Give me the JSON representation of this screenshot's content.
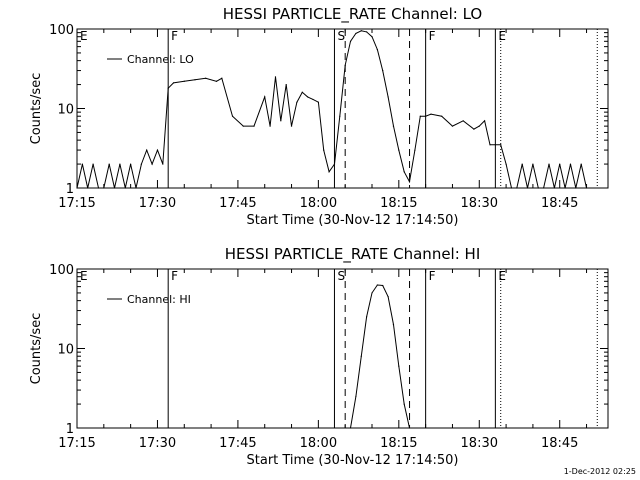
{
  "footer": "1-Dec-2012 02:25",
  "chart_data": [
    {
      "type": "line",
      "title": "HESSI PARTICLE_RATE Channel: LO",
      "xlabel": "Start Time (30-Nov-12 17:14:50)",
      "ylabel": "Counts/sec",
      "y_scale": "log",
      "ylim": [
        1,
        100
      ],
      "y_ticks": [
        1,
        10,
        100
      ],
      "y_tick_labels": [
        "1",
        "10",
        "100"
      ],
      "xlim": [
        "17:15",
        "18:54"
      ],
      "x_ticks": [
        "17:15",
        "17:30",
        "17:45",
        "18:00",
        "18:15",
        "18:30",
        "18:45"
      ],
      "legend": {
        "label": "Channel: LO",
        "placement": "top-left"
      },
      "series": [
        {
          "name": "Channel: LO",
          "x": [
            "17:15",
            "17:16",
            "17:17",
            "17:18",
            "17:19",
            "17:20",
            "17:21",
            "17:22",
            "17:23",
            "17:24",
            "17:25",
            "17:26",
            "17:27",
            "17:28",
            "17:29",
            "17:30",
            "17:31",
            "17:32",
            "17:33",
            "17:35",
            "17:37",
            "17:39",
            "17:41",
            "17:42",
            "17:44",
            "17:46",
            "17:48",
            "17:50",
            "17:51",
            "17:52",
            "17:53",
            "17:54",
            "17:55",
            "17:56",
            "17:57",
            "17:58",
            "17:59",
            "18:00",
            "18:01",
            "18:02",
            "18:03",
            "18:04",
            "18:05",
            "18:06",
            "18:07",
            "18:08",
            "18:09",
            "18:10",
            "18:11",
            "18:12",
            "18:13",
            "18:14",
            "18:15",
            "18:16",
            "18:17",
            "18:18",
            "18:19",
            "18:20",
            "18:21",
            "18:23",
            "18:25",
            "18:27",
            "18:29",
            "18:30",
            "18:31",
            "18:32",
            "18:33",
            "18:34",
            "18:35",
            "18:36",
            "18:37",
            "18:38",
            "18:39",
            "18:40",
            "18:41",
            "18:42",
            "18:43",
            "18:44",
            "18:45",
            "18:46",
            "18:47",
            "18:48",
            "18:49",
            "18:50"
          ],
          "values": [
            1,
            2,
            1,
            2,
            1,
            1,
            2,
            1,
            2,
            1,
            2,
            1,
            2,
            3,
            2,
            3,
            2,
            18,
            21,
            22,
            23,
            24,
            22,
            24,
            8,
            6,
            6,
            14,
            6,
            25,
            7,
            20,
            6,
            12,
            16,
            14,
            13,
            12,
            3,
            1.6,
            2,
            8,
            35,
            70,
            88,
            95,
            92,
            80,
            55,
            30,
            14,
            6,
            3,
            1.6,
            1.2,
            3,
            8,
            8,
            8.5,
            8,
            6,
            7,
            5.5,
            6,
            7,
            3.5,
            3.5,
            3.5,
            2,
            1,
            1,
            2,
            1,
            2,
            1,
            1,
            2,
            1,
            2,
            1,
            2,
            1,
            2,
            1
          ]
        }
      ],
      "markers": [
        {
          "label": "E",
          "time": "17:15",
          "style": "solid"
        },
        {
          "label": "F",
          "time": "17:32",
          "style": "solid"
        },
        {
          "label": "S",
          "time": "18:03",
          "style": "solid"
        },
        {
          "label": "",
          "time": "18:05",
          "style": "dashed"
        },
        {
          "label": "",
          "time": "18:17",
          "style": "dashed"
        },
        {
          "label": "F",
          "time": "18:20",
          "style": "solid"
        },
        {
          "label": "E",
          "time": "18:33",
          "style": "solid"
        },
        {
          "label": "",
          "time": "18:34",
          "style": "dotted"
        },
        {
          "label": "",
          "time": "18:52",
          "style": "dotted"
        }
      ]
    },
    {
      "type": "line",
      "title": "HESSI PARTICLE_RATE Channel: HI",
      "xlabel": "Start Time (30-Nov-12 17:14:50)",
      "ylabel": "Counts/sec",
      "y_scale": "log",
      "ylim": [
        1,
        100
      ],
      "y_ticks": [
        1,
        10,
        100
      ],
      "y_tick_labels": [
        "1",
        "10",
        "100"
      ],
      "xlim": [
        "17:15",
        "18:54"
      ],
      "x_ticks": [
        "17:15",
        "17:30",
        "17:45",
        "18:00",
        "18:15",
        "18:30",
        "18:45"
      ],
      "legend": {
        "label": "Channel: HI",
        "placement": "top-left"
      },
      "series": [
        {
          "name": "Channel: HI",
          "x": [
            "18:06",
            "18:07",
            "18:08",
            "18:09",
            "18:10",
            "18:11",
            "18:12",
            "18:13",
            "18:14",
            "18:15",
            "18:16",
            "18:17"
          ],
          "values": [
            1,
            2.5,
            8,
            25,
            50,
            63,
            62,
            45,
            20,
            6,
            2,
            1
          ]
        }
      ],
      "markers": [
        {
          "label": "E",
          "time": "17:15",
          "style": "solid"
        },
        {
          "label": "F",
          "time": "17:32",
          "style": "solid"
        },
        {
          "label": "S",
          "time": "18:03",
          "style": "solid"
        },
        {
          "label": "",
          "time": "18:05",
          "style": "dashed"
        },
        {
          "label": "",
          "time": "18:17",
          "style": "dashed"
        },
        {
          "label": "F",
          "time": "18:20",
          "style": "solid"
        },
        {
          "label": "E",
          "time": "18:33",
          "style": "solid"
        },
        {
          "label": "",
          "time": "18:34",
          "style": "dotted"
        },
        {
          "label": "",
          "time": "18:52",
          "style": "dotted"
        }
      ]
    }
  ]
}
